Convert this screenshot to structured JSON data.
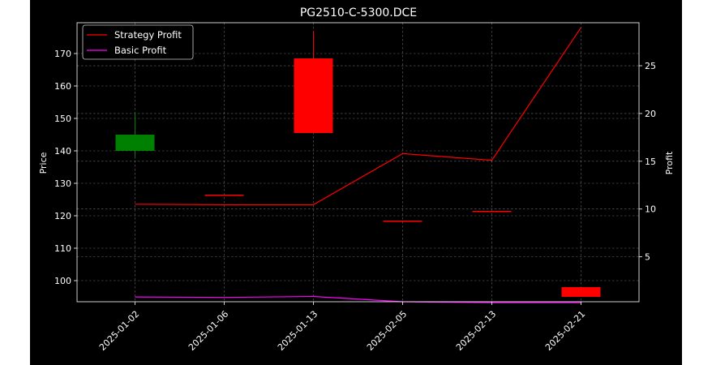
{
  "chart_data": {
    "type": "candlestick",
    "title": "PG2510-C-5300.DCE",
    "ylabel_left": "Price",
    "ylabel_right": "Profit",
    "xlabel": "",
    "categories": [
      "2025-01-02",
      "2025-01-06",
      "2025-01-13",
      "2025-02-05",
      "2025-02-13",
      "2025-02-21"
    ],
    "ohlc": [
      {
        "date": "2025-01-02",
        "open": 140.0,
        "high": 152.0,
        "low": 138.0,
        "close": 145.0,
        "color": "#008000"
      },
      {
        "date": "2025-01-06",
        "open": 126.5,
        "high": 126.5,
        "low": 126.5,
        "close": 126.5,
        "color": "#ff0000"
      },
      {
        "date": "2025-01-13",
        "open": 168.5,
        "high": 177.0,
        "low": 145.5,
        "close": 145.5,
        "color": "#ff0000"
      },
      {
        "date": "2025-02-05",
        "open": 118.5,
        "high": 118.5,
        "low": 118.5,
        "close": 118.5,
        "color": "#ff0000"
      },
      {
        "date": "2025-02-13",
        "open": 121.5,
        "high": 121.5,
        "low": 121.5,
        "close": 121.5,
        "color": "#ff0000"
      },
      {
        "date": "2025-02-21",
        "open": 98.0,
        "high": 98.0,
        "low": 95.0,
        "close": 95.0,
        "color": "#ff0000"
      }
    ],
    "series": [
      {
        "name": "Strategy Profit",
        "color": "#ff0000",
        "values": [
          10.5,
          10.45,
          10.45,
          15.8,
          15.1,
          29.0
        ]
      },
      {
        "name": "Basic Profit",
        "color": "#ff00ff",
        "values": [
          0.8,
          0.75,
          0.85,
          0.3,
          0.2,
          0.2
        ]
      }
    ],
    "ylim_left": [
      93.5,
      179.5
    ],
    "ylim_right": [
      0.3,
      29.5
    ],
    "yticks_left": [
      100,
      110,
      120,
      130,
      140,
      150,
      160,
      170
    ],
    "yticks_right": [
      5,
      10,
      15,
      20,
      25
    ],
    "grid": true,
    "legend_placement": "top-left",
    "background": "#000000",
    "foreground": "#ffffff"
  }
}
